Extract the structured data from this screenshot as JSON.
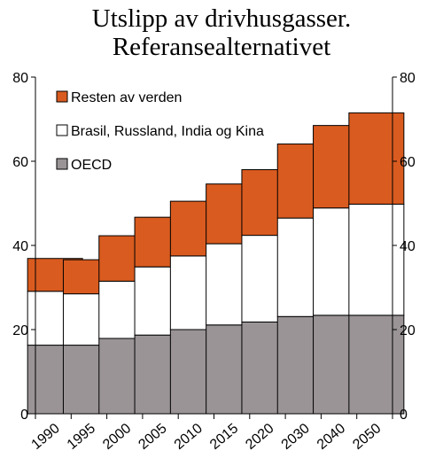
{
  "chart_data": {
    "type": "bar",
    "stacked": true,
    "title": "Utslipp av drivhusgasser.",
    "subtitle": "Referansealternativet",
    "categories": [
      "1990",
      "1995",
      "2000",
      "2005",
      "2010",
      "2015",
      "2020",
      "2030",
      "2040",
      "2050"
    ],
    "series": [
      {
        "name": "OECD",
        "color": "#9a9496",
        "values": [
          16.3,
          16.3,
          17.9,
          18.7,
          20.0,
          21.1,
          21.8,
          23.1,
          23.4,
          23.4
        ]
      },
      {
        "name": "Brasil, Russland, India og Kina",
        "color": "#ffffff",
        "values": [
          12.8,
          12.2,
          13.6,
          16.2,
          17.5,
          19.3,
          20.6,
          23.4,
          25.5,
          26.4
        ]
      },
      {
        "name": "Resten av verden",
        "color": "#d95b1f",
        "values": [
          7.8,
          8.1,
          10.8,
          11.8,
          13.0,
          14.2,
          15.6,
          17.6,
          19.6,
          21.7
        ]
      }
    ],
    "ylim": [
      0,
      80
    ],
    "yticks": [
      0,
      20,
      40,
      60,
      80
    ],
    "legend_position": "top-left",
    "grid": false
  }
}
